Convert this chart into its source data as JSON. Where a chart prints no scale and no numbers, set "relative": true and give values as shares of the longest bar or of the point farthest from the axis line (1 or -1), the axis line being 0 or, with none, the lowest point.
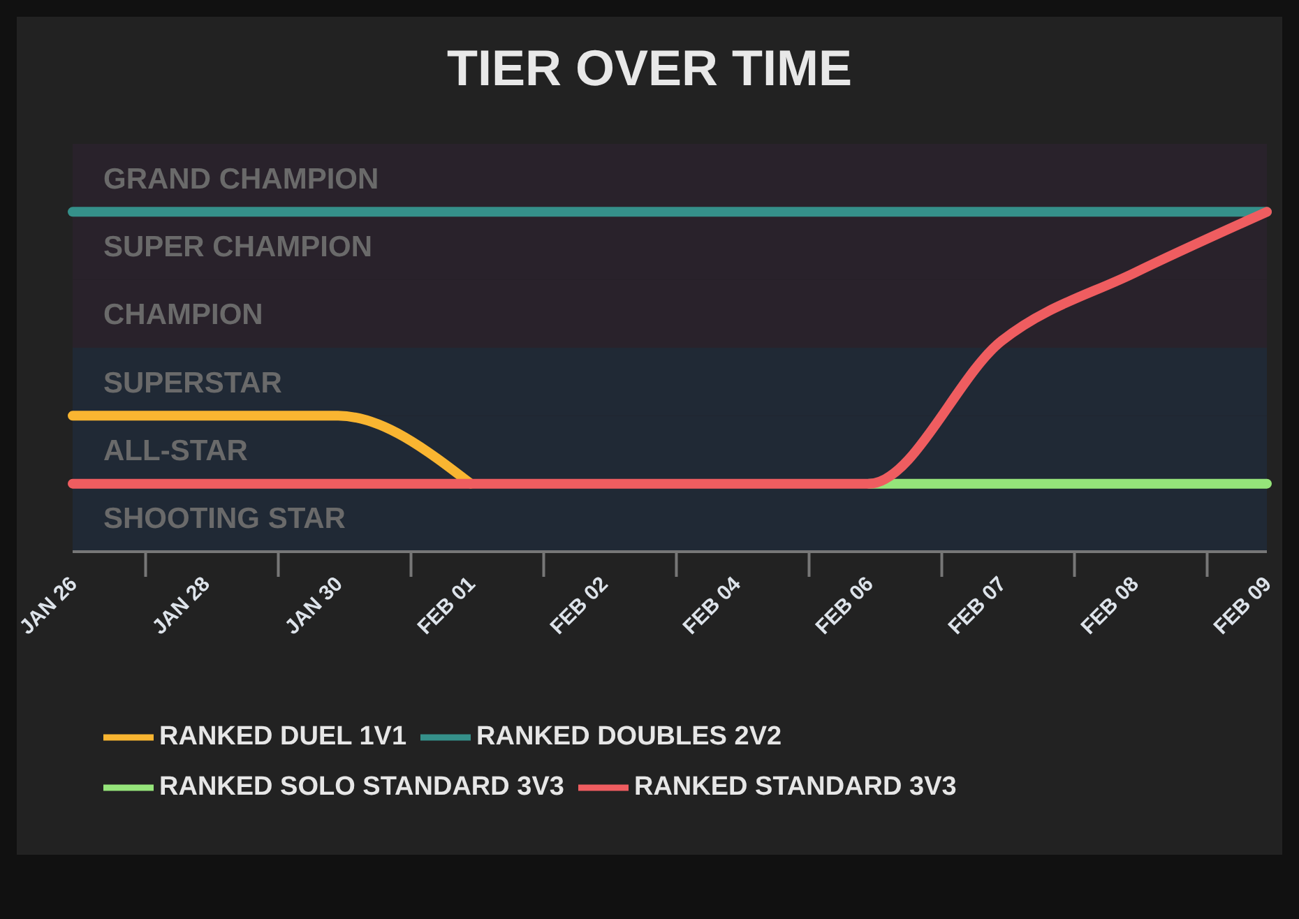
{
  "chart_data": {
    "type": "line",
    "title": "TIER OVER TIME",
    "relative": true,
    "categories": [
      "JAN 26",
      "JAN 28",
      "JAN 30",
      "FEB 01",
      "FEB 02",
      "FEB 04",
      "FEB 06",
      "FEB 07",
      "FEB 08",
      "FEB 09"
    ],
    "series": [
      {
        "name": "RANKED DUEL 1V1",
        "color": "#f9b531",
        "values": [
          0.4,
          0.4,
          0.4,
          0.2,
          null,
          null,
          null,
          null,
          null,
          null
        ]
      },
      {
        "name": "RANKED DOUBLES 2V2",
        "color": "#35908a",
        "values": [
          1,
          1,
          1,
          1,
          1,
          1,
          1,
          1,
          1,
          1
        ]
      },
      {
        "name": "RANKED SOLO STANDARD 3V3",
        "color": "#95e47a",
        "values": [
          null,
          null,
          null,
          null,
          null,
          null,
          0.2,
          0.2,
          0.2,
          0.2
        ]
      },
      {
        "name": "RANKED STANDARD 3V3",
        "color": "#ef5d60",
        "values": [
          0.2,
          0.2,
          0.2,
          0.2,
          0.2,
          0.2,
          0.2,
          0.62,
          0.82,
          1
        ]
      }
    ],
    "bands": [
      {
        "axis": "y",
        "from": 0,
        "to": 0.2,
        "label": "SHOOTING STAR",
        "color": "#202935"
      },
      {
        "axis": "y",
        "from": 0.2,
        "to": 0.4,
        "label": "ALL-STAR",
        "color": "#202935"
      },
      {
        "axis": "y",
        "from": 0.4,
        "to": 0.6,
        "label": "SUPERSTAR",
        "color": "#202935"
      },
      {
        "axis": "y",
        "from": 0.6,
        "to": 0.8,
        "label": "CHAMPION",
        "color": "#29222b"
      },
      {
        "axis": "y",
        "from": 0.8,
        "to": 1,
        "label": "SUPER CHAMPION",
        "color": "#29222b"
      },
      {
        "axis": "y",
        "from": 1,
        "to": 1.2,
        "label": "GRAND CHAMPION",
        "color": "#29222b"
      }
    ],
    "legend": "bottom",
    "marker": "none",
    "line_style": "solid"
  }
}
